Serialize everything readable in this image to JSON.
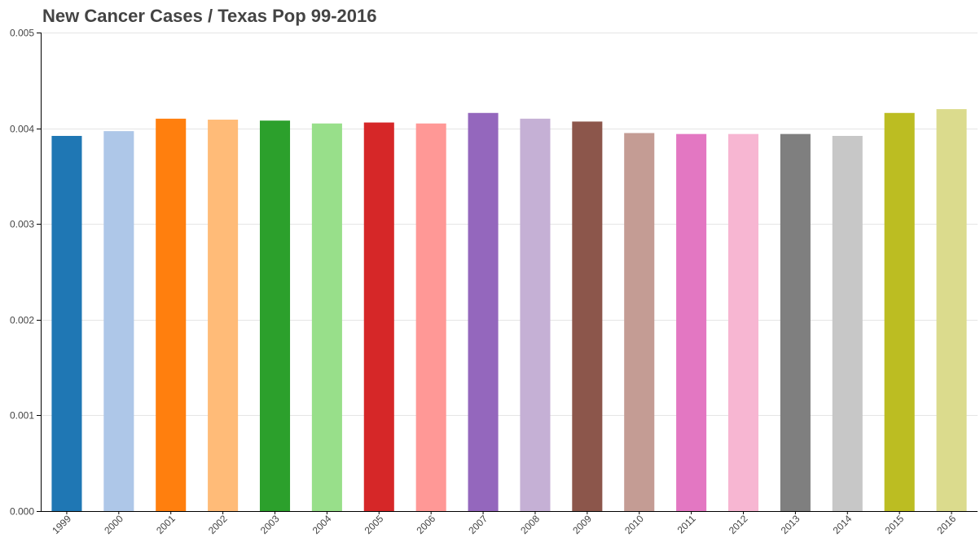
{
  "chart_data": {
    "type": "bar",
    "title": "New Cancer Cases / Texas Pop 99-2016",
    "xlabel": "",
    "ylabel": "",
    "categories": [
      "1999",
      "2000",
      "2001",
      "2002",
      "2003",
      "2004",
      "2005",
      "2006",
      "2007",
      "2008",
      "2009",
      "2010",
      "2011",
      "2012",
      "2013",
      "2014",
      "2015",
      "2016"
    ],
    "values": [
      0.00392,
      0.00397,
      0.0041,
      0.00409,
      0.00408,
      0.00405,
      0.00406,
      0.00405,
      0.00416,
      0.0041,
      0.00407,
      0.00395,
      0.00394,
      0.00394,
      0.00394,
      0.00392,
      0.00416,
      0.0042
    ],
    "colors": [
      "#1f77b4",
      "#aec7e8",
      "#ff7f0e",
      "#ffbb78",
      "#2ca02c",
      "#98df8a",
      "#d62728",
      "#ff9896",
      "#9467bd",
      "#c5b0d5",
      "#8c564b",
      "#c49c94",
      "#e377c2",
      "#f7b6d2",
      "#7f7f7f",
      "#c7c7c7",
      "#bcbd22",
      "#dbdb8d"
    ],
    "ylim": [
      0,
      0.005
    ],
    "yticks": [
      "0.000",
      "0.001",
      "0.002",
      "0.003",
      "0.004",
      "0.005"
    ],
    "grid": true,
    "legend": "none"
  }
}
